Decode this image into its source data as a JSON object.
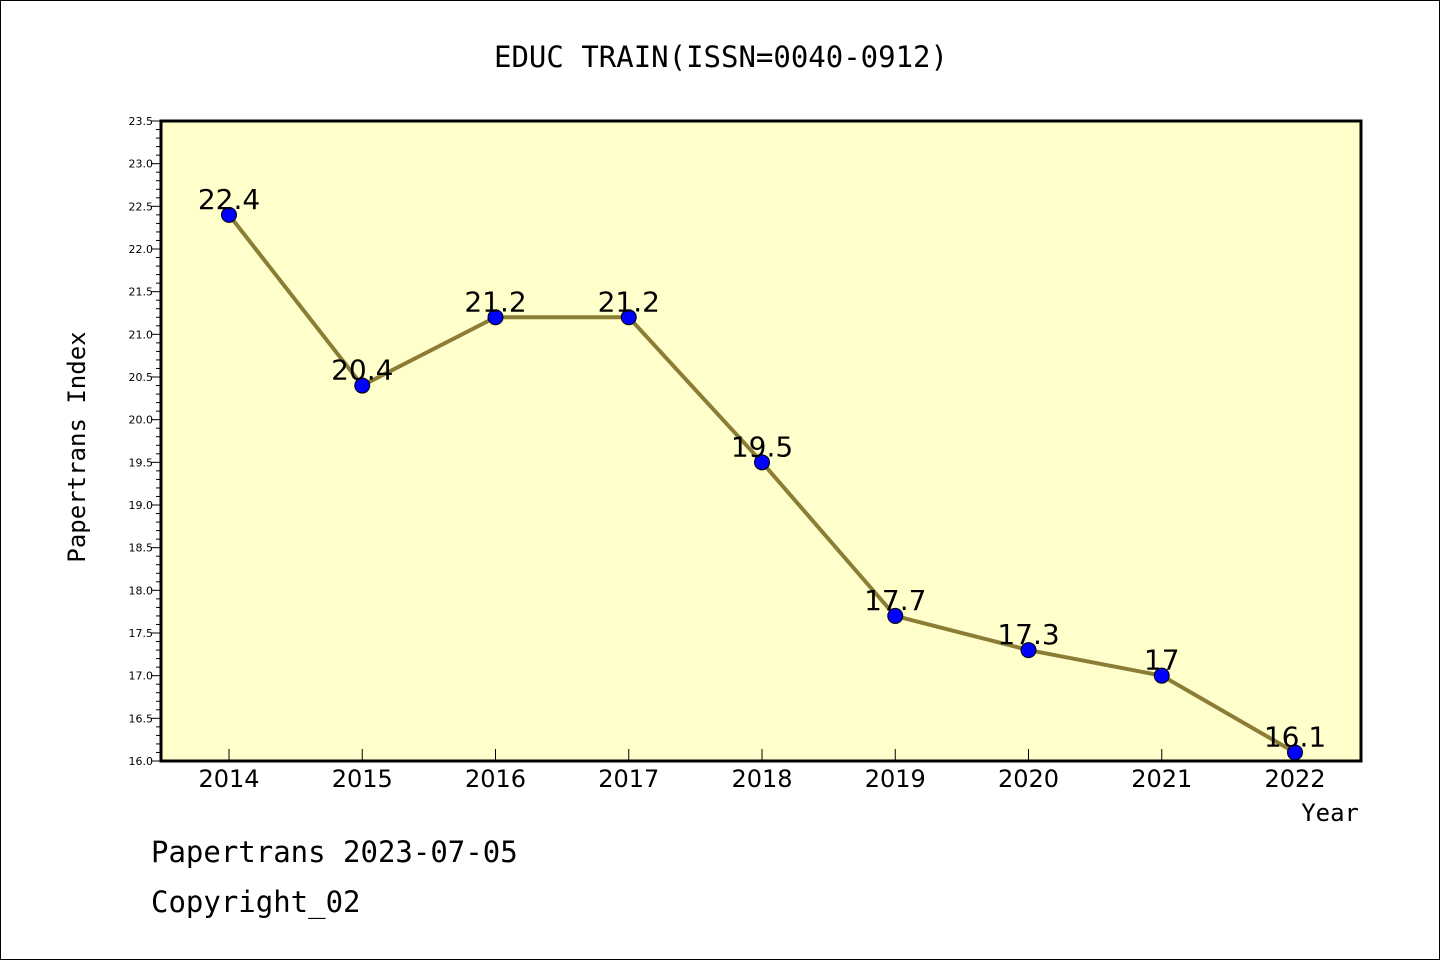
{
  "chart_data": {
    "type": "line",
    "title": "EDUC TRAIN(ISSN=0040-0912)",
    "xlabel": "Year",
    "ylabel": "Papertrans Index",
    "categories": [
      "2014",
      "2015",
      "2016",
      "2017",
      "2018",
      "2019",
      "2020",
      "2021",
      "2022"
    ],
    "series": [
      {
        "values": [
          22.4,
          20.4,
          21.2,
          21.2,
          19.5,
          17.7,
          17.3,
          17.0,
          16.1
        ]
      }
    ],
    "data_labels": [
      "22.4",
      "20.4",
      "21.2",
      "21.2",
      "19.5",
      "17.7",
      "17.3",
      "17",
      "16.1"
    ],
    "ylim": [
      16.0,
      23.5
    ],
    "yticks": [
      "16.0",
      "16.5",
      "17.0",
      "17.5",
      "18.0",
      "18.5",
      "19.0",
      "19.5",
      "20.0",
      "20.5",
      "21.0",
      "21.5",
      "22.0",
      "22.5",
      "23.0",
      "23.5"
    ],
    "grid": false,
    "colors": {
      "plot_background": "#ffffcc",
      "line": "#8b7d35",
      "marker": "#0000ff"
    }
  },
  "footer": {
    "line1": "Papertrans 2023-07-05",
    "line2": "Copyright_02"
  }
}
